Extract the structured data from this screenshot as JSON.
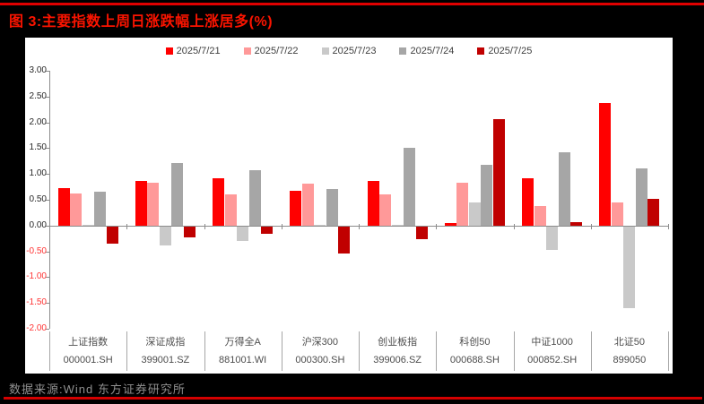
{
  "header": {
    "title": "图 3:主要指数上周日涨跌幅上涨居多(%)"
  },
  "footer": {
    "source": "数据来源:Wind 东方证券研究所"
  },
  "colors": {
    "page_bg": "#000000",
    "panel_bg": "#FFFFFF",
    "title_red": "#FA1400",
    "rule_red": "#E00000",
    "axis_gray": "#8C8C8C",
    "ytick_negative_red": "#FF3333",
    "category_label_gray": "#4D4D4D"
  },
  "chart_data": {
    "type": "bar",
    "title": "图 3:主要指数上周日涨跌幅上涨居多(%)",
    "xlabel": "",
    "ylabel": "",
    "ylim": [
      -2.0,
      3.0
    ],
    "ytick_step": 0.5,
    "ytick_labels": [
      "3.00",
      "2.50",
      "2.00",
      "1.50",
      "1.00",
      "0.50",
      "0.00",
      "-0.50",
      "-1.00",
      "-1.50",
      "-2.00"
    ],
    "grid": false,
    "legend_position": "top",
    "categories": [
      {
        "name": "上证指数",
        "code": "000001.SH"
      },
      {
        "name": "深证成指",
        "code": "399001.SZ"
      },
      {
        "name": "万得全A",
        "code": "881001.WI"
      },
      {
        "name": "沪深300",
        "code": "000300.SH"
      },
      {
        "name": "创业板指",
        "code": "399006.SZ"
      },
      {
        "name": "科创50",
        "code": "000688.SH"
      },
      {
        "name": "中证1000",
        "code": "000852.SH"
      },
      {
        "name": "北证50",
        "code": "899050"
      }
    ],
    "series": [
      {
        "name": "2025/7/21",
        "color": "#FF0000",
        "values": [
          0.72,
          0.86,
          0.91,
          0.67,
          0.87,
          0.04,
          0.92,
          2.38
        ]
      },
      {
        "name": "2025/7/22",
        "color": "#FF9999",
        "values": [
          0.62,
          0.83,
          0.6,
          0.81,
          0.61,
          0.83,
          0.37,
          0.45
        ]
      },
      {
        "name": "2025/7/23",
        "color": "#C9C9C9",
        "values": [
          0.01,
          -0.37,
          -0.28,
          0.02,
          0.01,
          0.44,
          -0.46,
          -1.58
        ]
      },
      {
        "name": "2025/7/24",
        "color": "#A6A6A6",
        "values": [
          0.65,
          1.21,
          1.08,
          0.71,
          1.5,
          1.17,
          1.42,
          1.1
        ]
      },
      {
        "name": "2025/7/25",
        "color": "#C00000",
        "values": [
          -0.33,
          -0.22,
          -0.14,
          -0.53,
          -0.25,
          2.07,
          0.07,
          0.52
        ]
      }
    ]
  }
}
